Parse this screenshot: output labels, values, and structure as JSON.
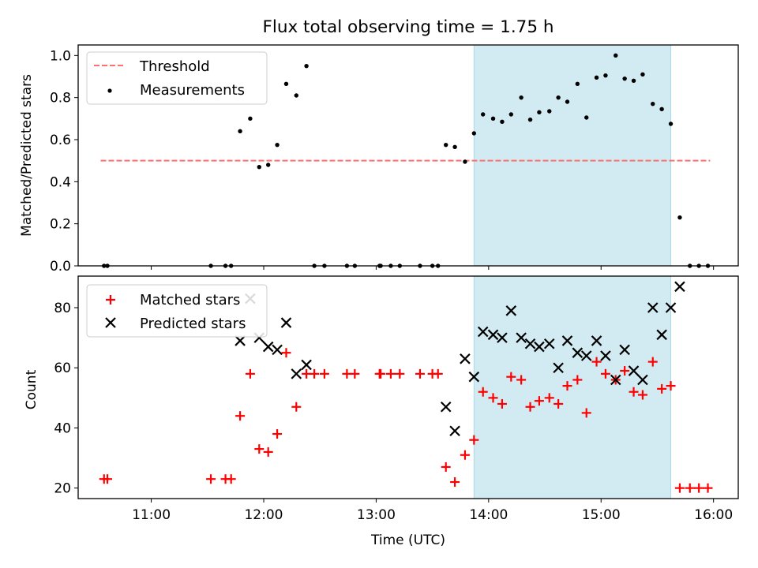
{
  "colors": {
    "threshold": "#ff6f6f",
    "measurement": "#000000",
    "matched": "#ff0000",
    "predicted": "#000000",
    "highlight": "#add8e6"
  },
  "chart_data": [
    {
      "type": "scatter",
      "title": "Flux total observing time = 1.75 h",
      "xlabel": "",
      "ylabel": "Matched/Predicted stars",
      "ylim": [
        0,
        1.05
      ],
      "yticks": [
        "0.0",
        "0.2",
        "0.4",
        "0.6",
        "0.8",
        "1.0"
      ],
      "x_unit": "hours UTC",
      "xlim": [
        10.35,
        16.22
      ],
      "highlight_span": [
        13.87,
        15.62
      ],
      "threshold": {
        "name": "Threshold",
        "y": 0.5,
        "x_range": [
          10.55,
          15.97
        ]
      },
      "legend": {
        "position": "upper left",
        "entries": [
          "Threshold",
          "Measurements"
        ]
      },
      "series": [
        {
          "name": "Measurements",
          "x": [
            10.58,
            10.61,
            11.53,
            11.66,
            11.71,
            11.79,
            11.88,
            11.96,
            12.04,
            12.12,
            12.2,
            12.29,
            12.38,
            12.45,
            12.54,
            12.74,
            12.81,
            13.03,
            13.04,
            13.13,
            13.21,
            13.39,
            13.5,
            13.55,
            13.62,
            13.7,
            13.79,
            13.87,
            13.95,
            14.04,
            14.12,
            14.2,
            14.29,
            14.37,
            14.45,
            14.54,
            14.62,
            14.7,
            14.79,
            14.87,
            14.96,
            15.04,
            15.13,
            15.21,
            15.29,
            15.37,
            15.46,
            15.54,
            15.62,
            15.7,
            15.79,
            15.87,
            15.95
          ],
          "y": [
            0.0,
            0.0,
            0.0,
            0.0,
            0.0,
            0.64,
            0.7,
            0.47,
            0.48,
            0.575,
            0.865,
            0.81,
            0.95,
            0.0,
            0.0,
            0.0,
            0.0,
            0.0,
            0.0,
            0.0,
            0.0,
            0.0,
            0.0,
            0.0,
            0.575,
            0.565,
            0.495,
            0.63,
            0.72,
            0.7,
            0.685,
            0.72,
            0.8,
            0.695,
            0.73,
            0.735,
            0.8,
            0.78,
            0.865,
            0.705,
            0.895,
            0.905,
            1.0,
            0.89,
            0.88,
            0.91,
            0.77,
            0.745,
            0.675,
            0.23,
            0.0,
            0.0,
            0.0
          ]
        }
      ]
    },
    {
      "type": "scatter",
      "title": "",
      "xlabel": "Time (UTC)",
      "ylabel": "Count",
      "ylim": [
        16.5,
        90.5
      ],
      "yticks": [
        "20",
        "40",
        "60",
        "80"
      ],
      "xticks": [
        "11:00",
        "12:00",
        "13:00",
        "14:00",
        "15:00",
        "16:00"
      ],
      "x_unit": "hours UTC",
      "xlim": [
        10.35,
        16.22
      ],
      "highlight_span": [
        13.87,
        15.62
      ],
      "legend": {
        "position": "upper left",
        "entries": [
          "Matched stars",
          "Predicted stars"
        ]
      },
      "series": [
        {
          "name": "Matched stars",
          "x": [
            10.58,
            10.61,
            11.53,
            11.66,
            11.71,
            11.79,
            11.88,
            11.96,
            12.04,
            12.12,
            12.2,
            12.29,
            12.38,
            12.45,
            12.54,
            12.74,
            12.81,
            13.03,
            13.04,
            13.13,
            13.21,
            13.39,
            13.5,
            13.55,
            13.62,
            13.7,
            13.79,
            13.87,
            13.95,
            14.04,
            14.12,
            14.2,
            14.29,
            14.37,
            14.45,
            14.54,
            14.62,
            14.7,
            14.79,
            14.87,
            14.96,
            15.04,
            15.13,
            15.21,
            15.29,
            15.37,
            15.46,
            15.54,
            15.62,
            15.7,
            15.79,
            15.87,
            15.95
          ],
          "y": [
            23,
            23,
            23,
            23,
            23,
            44,
            58,
            33,
            32,
            38,
            65,
            47,
            58,
            58,
            58,
            58,
            58,
            58,
            58,
            58,
            58,
            58,
            58,
            58,
            27,
            22,
            31,
            36,
            52,
            50,
            48,
            57,
            56,
            47,
            49,
            50,
            48,
            54,
            56,
            45,
            62,
            58,
            56,
            59,
            52,
            51,
            62,
            53,
            54,
            20,
            20,
            20,
            20
          ]
        },
        {
          "name": "Predicted stars",
          "x": [
            11.79,
            11.88,
            11.96,
            12.04,
            12.12,
            12.2,
            12.29,
            12.38,
            13.62,
            13.7,
            13.79,
            13.87,
            13.95,
            14.04,
            14.12,
            14.2,
            14.29,
            14.37,
            14.45,
            14.54,
            14.62,
            14.7,
            14.79,
            14.87,
            14.96,
            15.04,
            15.13,
            15.21,
            15.29,
            15.37,
            15.46,
            15.54,
            15.62,
            15.7
          ],
          "y": [
            69,
            83,
            70,
            67,
            66,
            75,
            58,
            61,
            47,
            39,
            63,
            57,
            72,
            71,
            70,
            79,
            70,
            68,
            67,
            68,
            60,
            69,
            65,
            64,
            69,
            64,
            56,
            66,
            59,
            56,
            80,
            71,
            80,
            87
          ]
        }
      ]
    }
  ]
}
